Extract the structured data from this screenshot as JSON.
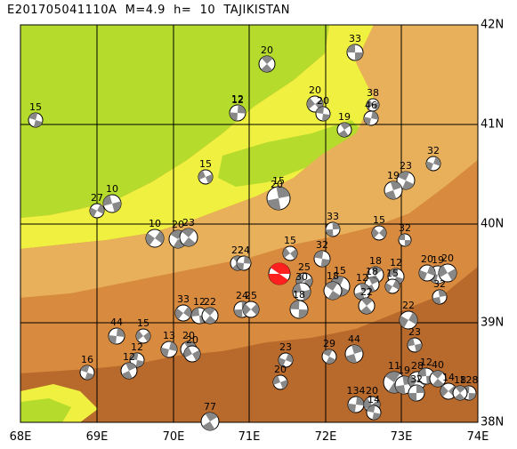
{
  "title": "E201705041110A  M=4.9  h=  10  TAJIKISTAN",
  "longitude_labels": [
    "68E",
    "69E",
    "70E",
    "71E",
    "72E",
    "73E",
    "74E"
  ],
  "latitude_labels": [
    "42N",
    "41N",
    "40N",
    "39N",
    "38N"
  ],
  "colors": {
    "lowland": "#b5dc2c",
    "plain": "#f0f040",
    "foothill": "#e8b05a",
    "mountain": "#d88a3e",
    "high_mountain": "#b86a2c",
    "grid": "#000000",
    "event_highlight": "#ff2020"
  },
  "depth_labels": [
    "33",
    "20",
    "12",
    "20",
    "20",
    "19",
    "46",
    "38",
    "15",
    "12",
    "32",
    "15",
    "23",
    "19",
    "27",
    "10",
    "20",
    "15",
    "10",
    "20",
    "23",
    "33",
    "15",
    "32",
    "22",
    "24",
    "15",
    "32",
    "18",
    "19",
    "20",
    "12",
    "18",
    "20",
    "25",
    "15",
    "12",
    "15",
    "30",
    "18",
    "32",
    "33",
    "12",
    "22",
    "24",
    "25",
    "18",
    "22",
    "44",
    "15",
    "12",
    "20",
    "13",
    "20",
    "16",
    "12",
    "23",
    "20",
    "29",
    "44",
    "22",
    "23",
    "11",
    "19",
    "28",
    "12",
    "40",
    "32",
    "14",
    "128",
    "18",
    "134",
    "20",
    "14",
    "77"
  ]
}
